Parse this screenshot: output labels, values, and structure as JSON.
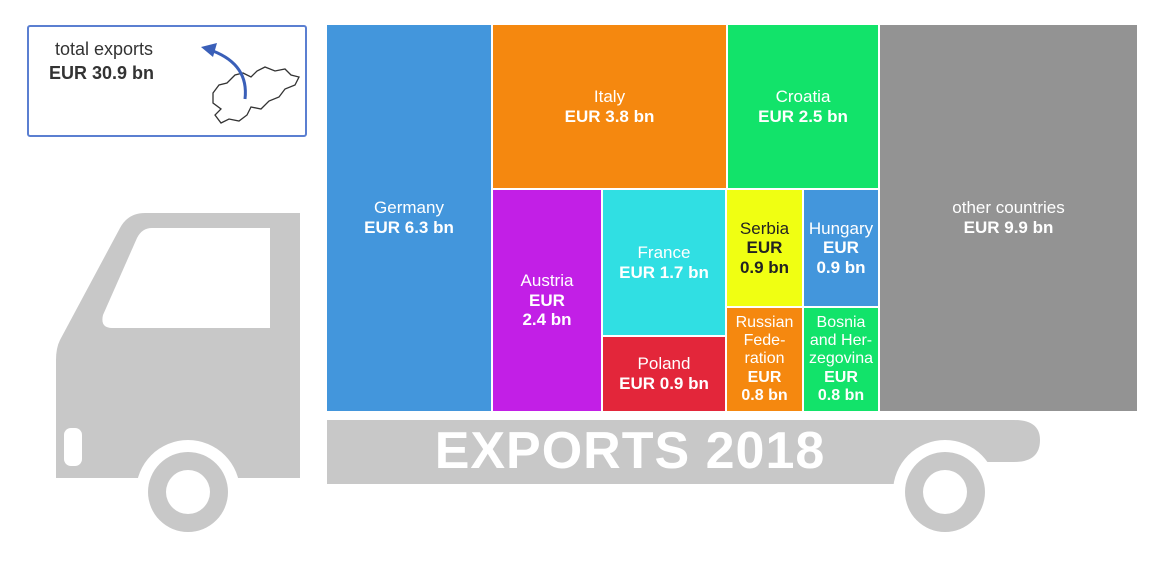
{
  "total": {
    "label": "total exports",
    "value": "EUR 30.9 bn"
  },
  "banner": "EXPORTS 2018",
  "chart_data": {
    "type": "treemap",
    "title": "EXPORTS 2018",
    "unit": "EUR bn",
    "total": 30.9,
    "items": [
      {
        "name": "Germany",
        "value": 6.3,
        "label": "EUR 6.3 bn",
        "color": "#4396dc"
      },
      {
        "name": "Italy",
        "value": 3.8,
        "label": "EUR 3.8 bn",
        "color": "#f5880f"
      },
      {
        "name": "Croatia",
        "value": 2.5,
        "label": "EUR 2.5 bn",
        "color": "#12e36a"
      },
      {
        "name": "other countries",
        "value": 9.9,
        "label": "EUR 9.9 bn",
        "color": "#939393"
      },
      {
        "name": "Austria",
        "value": 2.4,
        "label": "EUR 2.4 bn",
        "color": "#c21fe6"
      },
      {
        "name": "France",
        "value": 1.7,
        "label": "EUR 1.7 bn",
        "color": "#30dfe3"
      },
      {
        "name": "Poland",
        "value": 0.9,
        "label": "EUR 0.9 bn",
        "color": "#e3263a"
      },
      {
        "name": "Serbia",
        "value": 0.9,
        "label": "EUR 0.9 bn",
        "color": "#f0ff12"
      },
      {
        "name": "Hungary",
        "value": 0.9,
        "label": "EUR 0.9 bn",
        "color": "#4396dc"
      },
      {
        "name": "Russian Federation",
        "value": 0.8,
        "label": "EUR 0.8 bn",
        "color": "#f5880f"
      },
      {
        "name": "Bosnia and Herzegovina",
        "value": 0.8,
        "label": "EUR 0.8 bn",
        "color": "#12e36a"
      }
    ]
  },
  "tiles": {
    "germany": {
      "name": "Germany",
      "val": "EUR 6.3 bn"
    },
    "italy": {
      "name": "Italy",
      "val": "EUR 3.8 bn"
    },
    "croatia": {
      "name": "Croatia",
      "val": "EUR 2.5 bn"
    },
    "other": {
      "name": "other countries",
      "val": "EUR 9.9 bn"
    },
    "austria": {
      "name": "Austria",
      "val1": "EUR",
      "val2": "2.4 bn"
    },
    "france": {
      "name": "France",
      "val": "EUR 1.7 bn"
    },
    "poland": {
      "name": "Poland",
      "val": "EUR 0.9 bn"
    },
    "serbia": {
      "name": "Serbia",
      "val1": "EUR",
      "val2": "0.9 bn"
    },
    "hungary": {
      "name": "Hungary",
      "val1": "EUR",
      "val2": "0.9 bn"
    },
    "russia": {
      "name1": "Russian",
      "name2": "Fede-",
      "name3": "ration",
      "val1": "EUR",
      "val2": "0.8 bn"
    },
    "bosnia": {
      "name1": "Bosnia",
      "name2": "and Her-",
      "name3": "zegovina",
      "val1": "EUR",
      "val2": "0.8 bn"
    }
  },
  "colors": {
    "truck": "#c8c8c8",
    "truck_window": "#ffffff",
    "box_border": "#5b7fd1",
    "arrow": "#3a5fb8"
  }
}
